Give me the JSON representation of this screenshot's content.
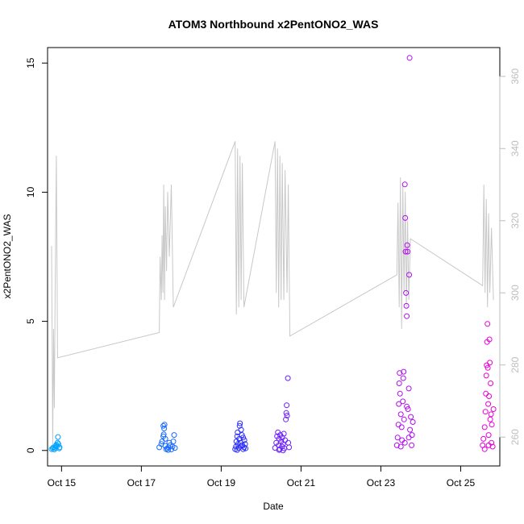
{
  "chart_data": {
    "type": "scatter",
    "title": "ATOM3 Northbound x2PentONO2_WAS",
    "xlabel": "Date",
    "ylabel": "x2PentONO2_WAS",
    "x_ticks": [
      "Oct 15",
      "Oct 17",
      "Oct 19",
      "Oct 21",
      "Oct 23",
      "Oct 25"
    ],
    "xlim": [
      "Oct 14.65",
      "Oct 25.98"
    ],
    "ylim": [
      -0.6,
      15.6
    ],
    "y_ticks": [
      0,
      5,
      10,
      15
    ],
    "y2_ticks": [
      260,
      280,
      300,
      320,
      340,
      360
    ],
    "y2lim": [
      252,
      368
    ],
    "grid": false,
    "scatter_series": [
      {
        "color": "#00a2ff",
        "points": [
          [
            "Oct 14.75",
            0.05
          ],
          [
            "Oct 14.78",
            0.08
          ],
          [
            "Oct 14.8",
            0.12
          ],
          [
            "Oct 14.82",
            0.04
          ],
          [
            "Oct 14.84",
            0.1
          ],
          [
            "Oct 14.86",
            0.18
          ],
          [
            "Oct 14.87",
            0.22
          ],
          [
            "Oct 14.88",
            0.15
          ],
          [
            "Oct 14.9",
            0.3
          ],
          [
            "Oct 14.91",
            0.52
          ],
          [
            "Oct 14.92",
            0.25
          ],
          [
            "Oct 14.94",
            0.08
          ],
          [
            "Oct 14.95",
            0.12
          ]
        ]
      },
      {
        "color": "#1a6bff",
        "points": [
          [
            "Oct 17.45",
            0.12
          ],
          [
            "Oct 17.5",
            0.25
          ],
          [
            "Oct 17.52",
            0.35
          ],
          [
            "Oct 17.55",
            0.55
          ],
          [
            "Oct 17.56",
            0.62
          ],
          [
            "Oct 17.57",
            0.85
          ],
          [
            "Oct 17.58",
            1.0
          ],
          [
            "Oct 17.6",
            0.18
          ],
          [
            "Oct 17.62",
            0.05
          ],
          [
            "Oct 17.65",
            0.08
          ],
          [
            "Oct 17.68",
            0.12
          ],
          [
            "Oct 17.7",
            0.3
          ],
          [
            "Oct 17.72",
            0.2
          ],
          [
            "Oct 17.75",
            0.04
          ],
          [
            "Oct 17.78",
            0.15
          ],
          [
            "Oct 17.8",
            0.35
          ],
          [
            "Oct 17.82",
            0.6
          ],
          [
            "Oct 17.84",
            0.1
          ],
          [
            "Oct 17.6",
            0.45
          ],
          [
            "Oct 17.67",
            0.02
          ],
          [
            "Oct 17.55",
            0.95
          ]
        ]
      },
      {
        "color": "#2a2cff",
        "points": [
          [
            "Oct 19.35",
            0.05
          ],
          [
            "Oct 19.37",
            0.15
          ],
          [
            "Oct 19.38",
            0.35
          ],
          [
            "Oct 19.4",
            0.55
          ],
          [
            "Oct 19.41",
            0.7
          ],
          [
            "Oct 19.42",
            0.25
          ],
          [
            "Oct 19.44",
            0.1
          ],
          [
            "Oct 19.45",
            0.45
          ],
          [
            "Oct 19.46",
            0.95
          ],
          [
            "Oct 19.47",
            1.05
          ],
          [
            "Oct 19.48",
            0.3
          ],
          [
            "Oct 19.5",
            0.8
          ],
          [
            "Oct 19.52",
            0.6
          ],
          [
            "Oct 19.53",
            0.2
          ],
          [
            "Oct 19.55",
            0.5
          ],
          [
            "Oct 19.57",
            0.12
          ],
          [
            "Oct 19.58",
            0.4
          ],
          [
            "Oct 19.6",
            0.25
          ],
          [
            "Oct 19.61",
            0.08
          ],
          [
            "Oct 19.4",
            0.02
          ],
          [
            "Oct 19.5",
            0.18
          ],
          [
            "Oct 19.55",
            0.05
          ]
        ]
      },
      {
        "color": "#6a1dff",
        "points": [
          [
            "Oct 20.35",
            0.1
          ],
          [
            "Oct 20.38",
            0.3
          ],
          [
            "Oct 20.4",
            0.55
          ],
          [
            "Oct 20.42",
            0.7
          ],
          [
            "Oct 20.44",
            0.2
          ],
          [
            "Oct 20.45",
            0.45
          ],
          [
            "Oct 20.47",
            0.05
          ],
          [
            "Oct 20.48",
            0.6
          ],
          [
            "Oct 20.5",
            0.35
          ],
          [
            "Oct 20.52",
            0.15
          ],
          [
            "Oct 20.53",
            0.5
          ],
          [
            "Oct 20.55",
            0.25
          ],
          [
            "Oct 20.57",
            0.65
          ],
          [
            "Oct 20.58",
            0.08
          ],
          [
            "Oct 20.6",
            0.4
          ],
          [
            "Oct 20.62",
            1.2
          ],
          [
            "Oct 20.63",
            1.45
          ],
          [
            "Oct 20.64",
            1.75
          ],
          [
            "Oct 20.65",
            1.35
          ],
          [
            "Oct 20.67",
            2.8
          ],
          [
            "Oct 20.68",
            0.3
          ],
          [
            "Oct 20.7",
            0.12
          ],
          [
            "Oct 20.45",
            0.02
          ],
          [
            "Oct 20.55",
            0.0
          ]
        ]
      },
      {
        "color": "#b40df0",
        "points": [
          [
            "Oct 23.4",
            0.2
          ],
          [
            "Oct 23.42",
            0.5
          ],
          [
            "Oct 23.44",
            1.0
          ],
          [
            "Oct 23.45",
            1.8
          ],
          [
            "Oct 23.46",
            2.6
          ],
          [
            "Oct 23.47",
            3.0
          ],
          [
            "Oct 23.48",
            2.2
          ],
          [
            "Oct 23.5",
            1.4
          ],
          [
            "Oct 23.52",
            0.9
          ],
          [
            "Oct 23.53",
            0.4
          ],
          [
            "Oct 23.55",
            1.9
          ],
          [
            "Oct 23.56",
            2.8
          ],
          [
            "Oct 23.57",
            3.05
          ],
          [
            "Oct 23.58",
            1.2
          ],
          [
            "Oct 23.6",
            10.3
          ],
          [
            "Oct 23.61",
            9.0
          ],
          [
            "Oct 23.62",
            7.7
          ],
          [
            "Oct 23.63",
            6.1
          ],
          [
            "Oct 23.64",
            5.6
          ],
          [
            "Oct 23.65",
            5.2
          ],
          [
            "Oct 23.66",
            7.95
          ],
          [
            "Oct 23.67",
            7.7
          ],
          [
            "Oct 23.68",
            1.6
          ],
          [
            "Oct 23.7",
            2.4
          ],
          [
            "Oct 23.71",
            6.8
          ],
          [
            "Oct 23.72",
            15.2
          ],
          [
            "Oct 23.73",
            0.8
          ],
          [
            "Oct 23.75",
            1.3
          ],
          [
            "Oct 23.77",
            0.2
          ],
          [
            "Oct 23.78",
            0.6
          ],
          [
            "Oct 23.8",
            1.1
          ],
          [
            "Oct 23.5",
            0.15
          ],
          [
            "Oct 23.6",
            0.3
          ],
          [
            "Oct 23.65",
            1.7
          ],
          [
            "Oct 23.7",
            0.5
          ]
        ]
      },
      {
        "color": "#e800d8",
        "points": [
          [
            "Oct 25.55",
            0.2
          ],
          [
            "Oct 25.57",
            0.45
          ],
          [
            "Oct 25.6",
            0.9
          ],
          [
            "Oct 25.62",
            1.5
          ],
          [
            "Oct 25.63",
            2.2
          ],
          [
            "Oct 25.64",
            2.9
          ],
          [
            "Oct 25.65",
            3.3
          ],
          [
            "Oct 25.66",
            4.2
          ],
          [
            "Oct 25.67",
            4.9
          ],
          [
            "Oct 25.68",
            3.2
          ],
          [
            "Oct 25.69",
            1.8
          ],
          [
            "Oct 25.7",
            0.6
          ],
          [
            "Oct 25.71",
            2.1
          ],
          [
            "Oct 25.72",
            4.3
          ],
          [
            "Oct 25.73",
            3.4
          ],
          [
            "Oct 25.74",
            1.2
          ],
          [
            "Oct 25.75",
            2.6
          ],
          [
            "Oct 25.76",
            1.4
          ],
          [
            "Oct 25.77",
            0.3
          ],
          [
            "Oct 25.78",
            1.0
          ],
          [
            "Oct 25.8",
            0.15
          ],
          [
            "Oct 25.82",
            1.6
          ],
          [
            "Oct 25.6",
            0.05
          ],
          [
            "Oct 25.7",
            0.2
          ]
        ]
      }
    ],
    "line_series": {
      "color": "#c8c8c8",
      "axis": "right",
      "points": [
        [
          "Oct 14.75",
          313
        ],
        [
          "Oct 14.78",
          258
        ],
        [
          "Oct 14.8",
          290
        ],
        [
          "Oct 14.82",
          268
        ],
        [
          "Oct 14.84",
          300
        ],
        [
          "Oct 14.87",
          338
        ],
        [
          "Oct 14.9",
          282
        ],
        [
          "Oct 17.45",
          289
        ],
        [
          "Oct 17.47",
          310
        ],
        [
          "Oct 17.5",
          298
        ],
        [
          "Oct 17.52",
          316
        ],
        [
          "Oct 17.54",
          300
        ],
        [
          "Oct 17.56",
          330
        ],
        [
          "Oct 17.58",
          298
        ],
        [
          "Oct 17.6",
          324
        ],
        [
          "Oct 17.63",
          306
        ],
        [
          "Oct 17.66",
          328
        ],
        [
          "Oct 17.7",
          310
        ],
        [
          "Oct 17.75",
          330
        ],
        [
          "Oct 17.8",
          296
        ],
        [
          "Oct 19.35",
          342
        ],
        [
          "Oct 19.38",
          294
        ],
        [
          "Oct 19.41",
          340
        ],
        [
          "Oct 19.44",
          296
        ],
        [
          "Oct 19.47",
          338
        ],
        [
          "Oct 19.5",
          298
        ],
        [
          "Oct 19.53",
          336
        ],
        [
          "Oct 19.57",
          296
        ],
        [
          "Oct 20.35",
          342
        ],
        [
          "Oct 20.38",
          300
        ],
        [
          "Oct 20.41",
          340
        ],
        [
          "Oct 20.44",
          296
        ],
        [
          "Oct 20.47",
          338
        ],
        [
          "Oct 20.5",
          298
        ],
        [
          "Oct 20.53",
          336
        ],
        [
          "Oct 20.57",
          298
        ],
        [
          "Oct 20.6",
          334
        ],
        [
          "Oct 20.65",
          300
        ],
        [
          "Oct 20.68",
          330
        ],
        [
          "Oct 20.72",
          288
        ],
        [
          "Oct 23.4",
          305
        ],
        [
          "Oct 23.43",
          325
        ],
        [
          "Oct 23.46",
          296
        ],
        [
          "Oct 23.49",
          332
        ],
        [
          "Oct 23.52",
          290
        ],
        [
          "Oct 23.55",
          330
        ],
        [
          "Oct 23.58",
          300
        ],
        [
          "Oct 23.61",
          328
        ],
        [
          "Oct 23.64",
          296
        ],
        [
          "Oct 23.67",
          320
        ],
        [
          "Oct 23.7",
          298
        ],
        [
          "Oct 23.74",
          315
        ],
        [
          "Oct 25.55",
          302
        ],
        [
          "Oct 25.58",
          330
        ],
        [
          "Oct 25.61",
          300
        ],
        [
          "Oct 25.64",
          326
        ],
        [
          "Oct 25.67",
          296
        ],
        [
          "Oct 25.7",
          322
        ],
        [
          "Oct 25.73",
          300
        ],
        [
          "Oct 25.77",
          318
        ],
        [
          "Oct 25.82",
          298
        ]
      ]
    }
  }
}
